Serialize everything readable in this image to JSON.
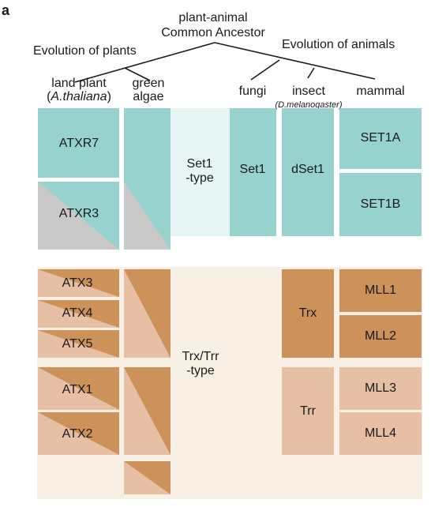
{
  "panel_label": "a",
  "tree": {
    "root_line1": "plant-animal",
    "root_line2": "Common Ancestor",
    "plants_branch": "Evolution of plants",
    "animals_branch": "Evolution of animals"
  },
  "columns": {
    "land_plant": "land plant",
    "land_plant_species": "A.thaliana",
    "green_line1": "green",
    "green_line2": "algae",
    "fungi": "fungi",
    "insect": "insect",
    "insect_species": "(D.melanogaster)",
    "mammal": "mammal"
  },
  "set1_group": {
    "type_line1": "Set1",
    "type_line2": "-type",
    "atxr7": "ATXR7",
    "atxr3": "ATXR3",
    "fungi_set1": "Set1",
    "dset1": "dSet1",
    "set1a": "SET1A",
    "set1b": "SET1B"
  },
  "trx_group": {
    "type_line1": "Trx/Trr",
    "type_line2": "-type",
    "atx3": "ATX3",
    "atx4": "ATX4",
    "atx5": "ATX5",
    "atx1": "ATX1",
    "atx2": "ATX2",
    "trx": "Trx",
    "trr": "Trr",
    "mll1": "MLL1",
    "mll2": "MLL2",
    "mll3": "MLL3",
    "mll4": "MLL4"
  },
  "colors": {
    "teal": "#97d2cf",
    "grey": "#c9c9c9",
    "light_teal_bg": "#e6f4f4",
    "brown": "#cd9259",
    "pink": "#e6bfa5",
    "beige_bg": "#f8efe5",
    "line": "#1a1a1a"
  }
}
